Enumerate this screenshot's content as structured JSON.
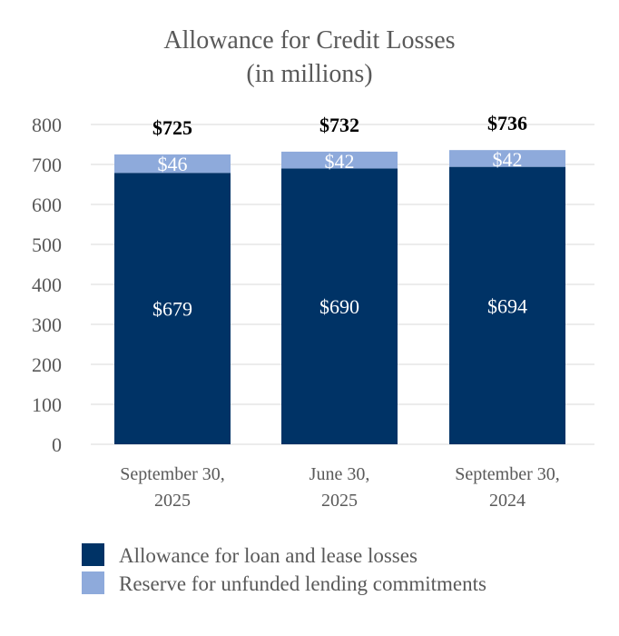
{
  "chart_data": {
    "type": "bar",
    "stacked": true,
    "title": "Allowance for Credit Losses",
    "subtitle": "(in millions)",
    "categories": [
      [
        "September 30,",
        "2025"
      ],
      [
        "June 30,",
        "2025"
      ],
      [
        "September 30,",
        "2024"
      ]
    ],
    "series": [
      {
        "name": "Allowance for loan and lease losses",
        "values": [
          679,
          690,
          694
        ],
        "labels": [
          "$679",
          "$690",
          "$694"
        ],
        "color": "#003366"
      },
      {
        "name": "Reserve for unfunded lending commitments",
        "values": [
          46,
          42,
          42
        ],
        "labels": [
          "$46",
          "$42",
          "$42"
        ],
        "color": "#8eaadb"
      }
    ],
    "totals": [
      "$725",
      "$732",
      "$736"
    ],
    "ylim": [
      0,
      800
    ],
    "yticks": [
      0,
      100,
      200,
      300,
      400,
      500,
      600,
      700,
      800
    ],
    "grid": true,
    "legend_position": "bottom"
  }
}
